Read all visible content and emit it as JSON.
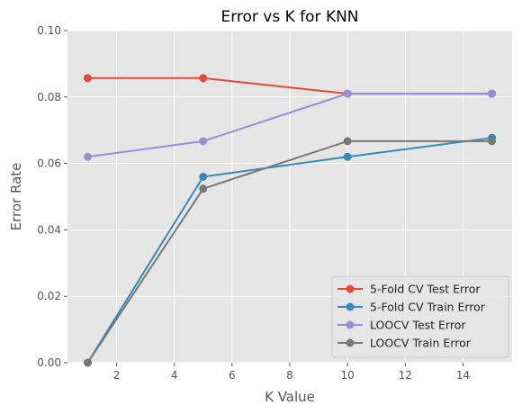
{
  "chart_data": {
    "type": "line",
    "title": "Error vs K for KNN",
    "xlabel": "K Value",
    "ylabel": "Error Rate",
    "x": [
      1,
      5,
      10,
      15
    ],
    "xlim": [
      0.3,
      15.7
    ],
    "ylim": [
      0,
      0.1
    ],
    "xticks": [
      2,
      4,
      6,
      8,
      10,
      12,
      14
    ],
    "yticks": [
      0.0,
      0.02,
      0.04,
      0.06,
      0.08,
      0.1
    ],
    "ytick_labels": [
      "0.00",
      "0.02",
      "0.04",
      "0.06",
      "0.08",
      "0.10"
    ],
    "grid": true,
    "legend_position": "lower-right",
    "series": [
      {
        "name": "5-Fold CV Test Error",
        "color": "#E24A33",
        "values": [
          0.0857,
          0.0857,
          0.081,
          0.081
        ]
      },
      {
        "name": "5-Fold CV Train Error",
        "color": "#348ABD",
        "values": [
          0.0,
          0.056,
          0.062,
          0.0677
        ]
      },
      {
        "name": "LOOCV Test Error",
        "color": "#988ED5",
        "values": [
          0.062,
          0.0667,
          0.081,
          0.081
        ]
      },
      {
        "name": "LOOCV Train Error",
        "color": "#777777",
        "values": [
          0.0,
          0.0524,
          0.0667,
          0.0667
        ]
      }
    ]
  }
}
